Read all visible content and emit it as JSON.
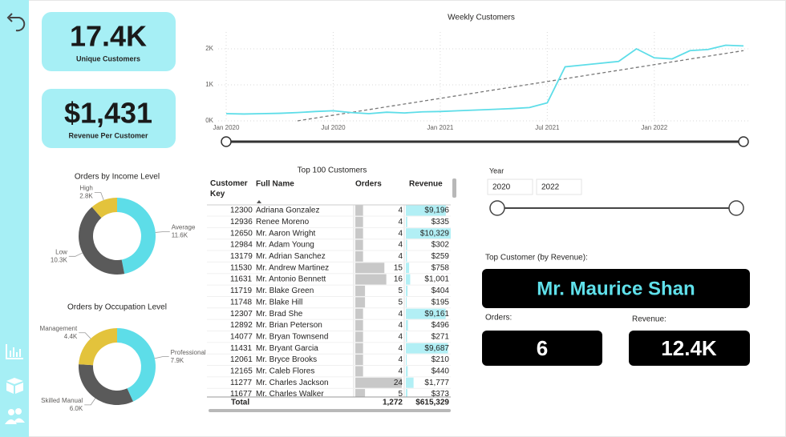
{
  "kpis": [
    {
      "value": "17.4K",
      "label": "Unique Customers"
    },
    {
      "value": "$1,431",
      "label": "Revenue Per Customer"
    }
  ],
  "line_chart": {
    "type": "line",
    "title": "Weekly Customers",
    "x": [
      "2020-01",
      "2020-02",
      "2020-03",
      "2020-04",
      "2020-05",
      "2020-06",
      "2020-07",
      "2020-08",
      "2020-09",
      "2020-10",
      "2020-11",
      "2020-12",
      "2021-01",
      "2021-02",
      "2021-03",
      "2021-04",
      "2021-05",
      "2021-06",
      "2021-07",
      "2021-08",
      "2021-09",
      "2021-10",
      "2021-11",
      "2021-12",
      "2022-01",
      "2022-02",
      "2022-03",
      "2022-04",
      "2022-05",
      "2022-06"
    ],
    "series": [
      {
        "color": "#5ddde8",
        "values": [
          200,
          190,
          200,
          210,
          230,
          260,
          280,
          230,
          200,
          240,
          220,
          250,
          260,
          280,
          300,
          320,
          340,
          370,
          500,
          1500,
          1550,
          1600,
          1650,
          2000,
          1750,
          1720,
          1950,
          1980,
          2100,
          2080
        ]
      }
    ],
    "trend": {
      "color": "#777777",
      "x": [
        "2020-05",
        "2022-06"
      ],
      "values": [
        0,
        1950
      ]
    },
    "xlim": [
      "2020-01",
      "2022-06"
    ],
    "xticks": [
      {
        "value": "2020-01",
        "label": "Jan 2020"
      },
      {
        "value": "2020-07",
        "label": "Jul 2020"
      },
      {
        "value": "2021-01",
        "label": "Jan 2021"
      },
      {
        "value": "2021-07",
        "label": "Jul 2021"
      },
      {
        "value": "2022-01",
        "label": "Jan 2022"
      }
    ],
    "ylim": [
      0,
      2500
    ],
    "yticks": [
      {
        "value": 0,
        "label": "0K"
      },
      {
        "value": 1000,
        "label": "1K"
      },
      {
        "value": 2000,
        "label": "2K"
      }
    ],
    "grid": true
  },
  "donuts": [
    {
      "type": "pie",
      "title": "Orders by Income Level",
      "categories": [
        "Average",
        "Low",
        "High"
      ],
      "values": [
        11600,
        10300,
        2800
      ],
      "value_labels": [
        "11.6K",
        "10.3K",
        "2.8K"
      ],
      "colors": [
        "#5ddde8",
        "#5a5a5a",
        "#e3c33c"
      ]
    },
    {
      "type": "pie",
      "title": "Orders by Occupation Level",
      "categories": [
        "Professional",
        "Skilled Manual",
        "Management"
      ],
      "values": [
        7900,
        6000,
        4400
      ],
      "value_labels": [
        "7.9K",
        "6.0K",
        "4.4K"
      ],
      "colors": [
        "#5ddde8",
        "#5a5a5a",
        "#e3c33c"
      ]
    }
  ],
  "table": {
    "title": "Top 100 Customers",
    "columns": [
      "Customer Key",
      "Full Name",
      "Orders",
      "Revenue"
    ],
    "rows": [
      {
        "key": 12300,
        "name": "Adriana Gonzalez",
        "orders": 4,
        "revenue": 9196,
        "revenue_label": "$9,196"
      },
      {
        "key": 12936,
        "name": "Renee Moreno",
        "orders": 4,
        "revenue": 335,
        "revenue_label": "$335"
      },
      {
        "key": 12650,
        "name": "Mr. Aaron Wright",
        "orders": 4,
        "revenue": 10329,
        "revenue_label": "$10,329"
      },
      {
        "key": 12984,
        "name": "Mr. Adam Young",
        "orders": 4,
        "revenue": 302,
        "revenue_label": "$302"
      },
      {
        "key": 13179,
        "name": "Mr. Adrian Sanchez",
        "orders": 4,
        "revenue": 259,
        "revenue_label": "$259"
      },
      {
        "key": 11530,
        "name": "Mr. Andrew Martinez",
        "orders": 15,
        "revenue": 758,
        "revenue_label": "$758"
      },
      {
        "key": 11631,
        "name": "Mr. Antonio Bennett",
        "orders": 16,
        "revenue": 1001,
        "revenue_label": "$1,001"
      },
      {
        "key": 11719,
        "name": "Mr. Blake Green",
        "orders": 5,
        "revenue": 404,
        "revenue_label": "$404"
      },
      {
        "key": 11748,
        "name": "Mr. Blake Hill",
        "orders": 5,
        "revenue": 195,
        "revenue_label": "$195"
      },
      {
        "key": 12307,
        "name": "Mr. Brad She",
        "orders": 4,
        "revenue": 9161,
        "revenue_label": "$9,161"
      },
      {
        "key": 12892,
        "name": "Mr. Brian Peterson",
        "orders": 4,
        "revenue": 496,
        "revenue_label": "$496"
      },
      {
        "key": 14077,
        "name": "Mr. Bryan Townsend",
        "orders": 4,
        "revenue": 271,
        "revenue_label": "$271"
      },
      {
        "key": 11431,
        "name": "Mr. Bryant Garcia",
        "orders": 4,
        "revenue": 9687,
        "revenue_label": "$9,687"
      },
      {
        "key": 12061,
        "name": "Mr. Bryce Brooks",
        "orders": 4,
        "revenue": 210,
        "revenue_label": "$210"
      },
      {
        "key": 12165,
        "name": "Mr. Caleb Flores",
        "orders": 4,
        "revenue": 440,
        "revenue_label": "$440"
      },
      {
        "key": 11277,
        "name": "Mr. Charles Jackson",
        "orders": 24,
        "revenue": 1777,
        "revenue_label": "$1,777"
      },
      {
        "key": 11677,
        "name": "Mr. Charles Walker",
        "orders": 5,
        "revenue": 373,
        "revenue_label": "$373"
      }
    ],
    "total": {
      "label": "Total",
      "orders": "1,272",
      "revenue": "$615,329"
    }
  },
  "year_slicer": {
    "label": "Year",
    "from": "2020",
    "to": "2022"
  },
  "top_customer": {
    "label": "Top Customer (by Revenue):",
    "name": "Mr. Maurice Shan",
    "orders_label": "Orders:",
    "orders": 6,
    "revenue_label": "Revenue:",
    "revenue": "12.4K"
  }
}
